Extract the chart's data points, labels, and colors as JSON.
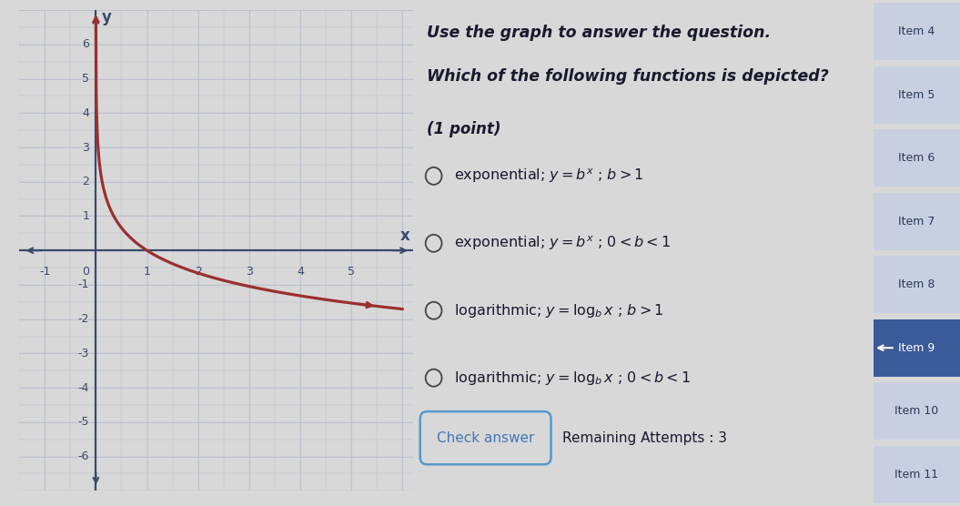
{
  "graph_xlim": [
    -1.5,
    6.2
  ],
  "graph_ylim": [
    -7,
    7
  ],
  "x_ticks": [
    -1,
    1,
    2,
    3,
    4,
    5
  ],
  "y_ticks": [
    -6,
    -5,
    -4,
    -3,
    -2,
    -1,
    1,
    2,
    3,
    4,
    5,
    6
  ],
  "curve_color": "#9B3030",
  "curve_lw": 2.3,
  "background_color": "#d8d8d8",
  "graph_bg": "#e0e4eb",
  "grid_color": "#b8bfcc",
  "axis_color": "#3a4a6b",
  "label_color": "#3a4a6b",
  "right_panel_text": "#1a1a2e",
  "title_text_line1": "Use the graph to answer the question.",
  "title_text_line2": "Which of the following functions is depicted?",
  "point_label": "(1 point)",
  "options": [
    "exponential; $y=b^x$ ; $b>1$",
    "exponential; $y=b^x$ ; $0<b<1$",
    "logarithmic; $y=\\log_b x$ ; $b>1$",
    "logarithmic; $y=\\log_b x$ ; $0<b<1$"
  ],
  "sidebar_items": [
    "Item 4",
    "Item 5",
    "Item 6",
    "Item 7",
    "Item 8",
    "Item 9",
    "Item 10",
    "Item 11"
  ],
  "sidebar_highlight_idx": 5,
  "check_button_text": "Check answer",
  "remaining_text": "Remaining Attempts : 3",
  "log_base": 0.35,
  "sidebar_highlight_color": "#3a5a9a",
  "sidebar_normal_color": "#c8cfe0",
  "sidebar_highlight_text": "white",
  "sidebar_normal_text": "#2a3a5a",
  "sidebar_bg": "#b8bfcc"
}
